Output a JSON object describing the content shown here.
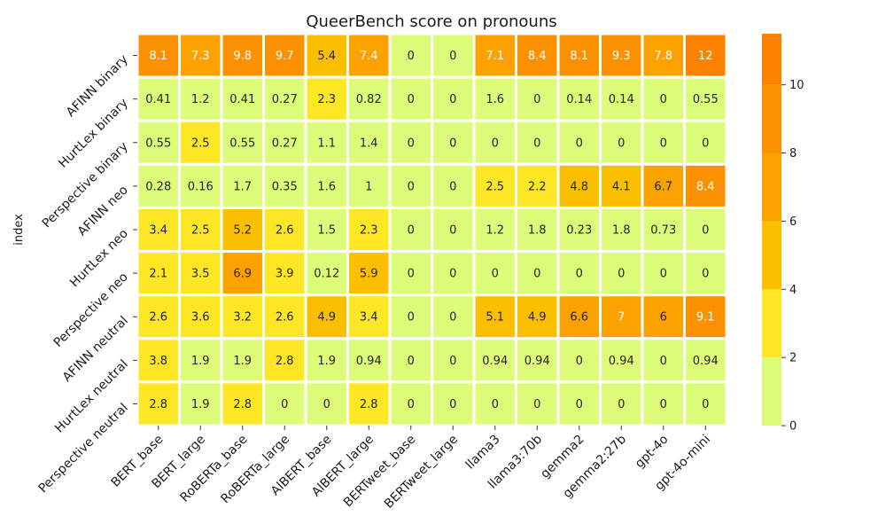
{
  "chart_data": {
    "type": "heatmap",
    "title": "QueerBench score on pronouns",
    "ylabel": "index",
    "xlabel": "",
    "columns": [
      "BERT_base",
      "BERT_large",
      "RoBERTa_base",
      "RoBERTa_large",
      "AlBERT_base",
      "AlBERT_large",
      "BERTweet_base",
      "BERTweet_large",
      "llama3",
      "llama3:70b",
      "gemma2",
      "gemma2:27b",
      "gpt-4o",
      "gpt-4o-mini"
    ],
    "rows": [
      "AFINN binary",
      "HurtLex binary",
      "Perspective binary",
      "AFINN neo",
      "HurtLex neo",
      "Perspective neo",
      "AFINN neutral",
      "HurtLex neutral",
      "Perspective neutral"
    ],
    "values": [
      [
        8.1,
        7.3,
        9.8,
        9.7,
        5.4,
        7.4,
        0,
        0,
        7.1,
        8.4,
        8.1,
        9.3,
        7.8,
        12
      ],
      [
        0.41,
        1.2,
        0.41,
        0.27,
        2.3,
        0.82,
        0,
        0,
        1.6,
        0,
        0.14,
        0.14,
        0,
        0.55
      ],
      [
        0.55,
        2.5,
        0.55,
        0.27,
        1.1,
        1.4,
        0,
        0,
        0,
        0,
        0,
        0,
        0,
        0
      ],
      [
        0.28,
        0.16,
        1.7,
        0.35,
        1.6,
        1,
        0,
        0,
        2.5,
        2.2,
        4.8,
        4.1,
        6.7,
        8.4
      ],
      [
        3.4,
        2.5,
        5.2,
        2.6,
        1.5,
        2.3,
        0,
        0,
        1.2,
        1.8,
        0.23,
        1.8,
        0.73,
        0
      ],
      [
        2.1,
        3.5,
        6.9,
        3.9,
        0.12,
        5.9,
        0,
        0,
        0,
        0,
        0,
        0,
        0,
        0
      ],
      [
        2.6,
        3.6,
        3.2,
        2.6,
        4.9,
        3.4,
        0,
        0,
        5.1,
        4.9,
        6.6,
        7,
        6,
        9.1
      ],
      [
        3.8,
        1.9,
        1.9,
        2.8,
        1.9,
        0.94,
        0,
        0,
        0.94,
        0.94,
        0,
        0.94,
        0,
        0.94
      ],
      [
        2.8,
        1.9,
        2.8,
        0,
        0,
        2.8,
        0,
        0,
        0,
        0,
        0,
        0,
        0,
        0
      ]
    ],
    "colorbar": {
      "bins": [
        [
          0,
          2
        ],
        [
          2,
          4
        ],
        [
          4,
          6
        ],
        [
          6,
          8
        ],
        [
          8,
          10
        ],
        [
          10,
          11.5
        ]
      ],
      "colors": [
        "#dcfb78",
        "#fde724",
        "#fcbf00",
        "#fca200",
        "#fb9000",
        "#fb8200"
      ],
      "range": [
        0,
        11.5
      ],
      "ticks": [
        0,
        2,
        4,
        6,
        8,
        10
      ]
    },
    "label_colors": {
      "dark": "#262626",
      "light": "#ffffff"
    },
    "grid": false,
    "legend": "right colorbar"
  }
}
